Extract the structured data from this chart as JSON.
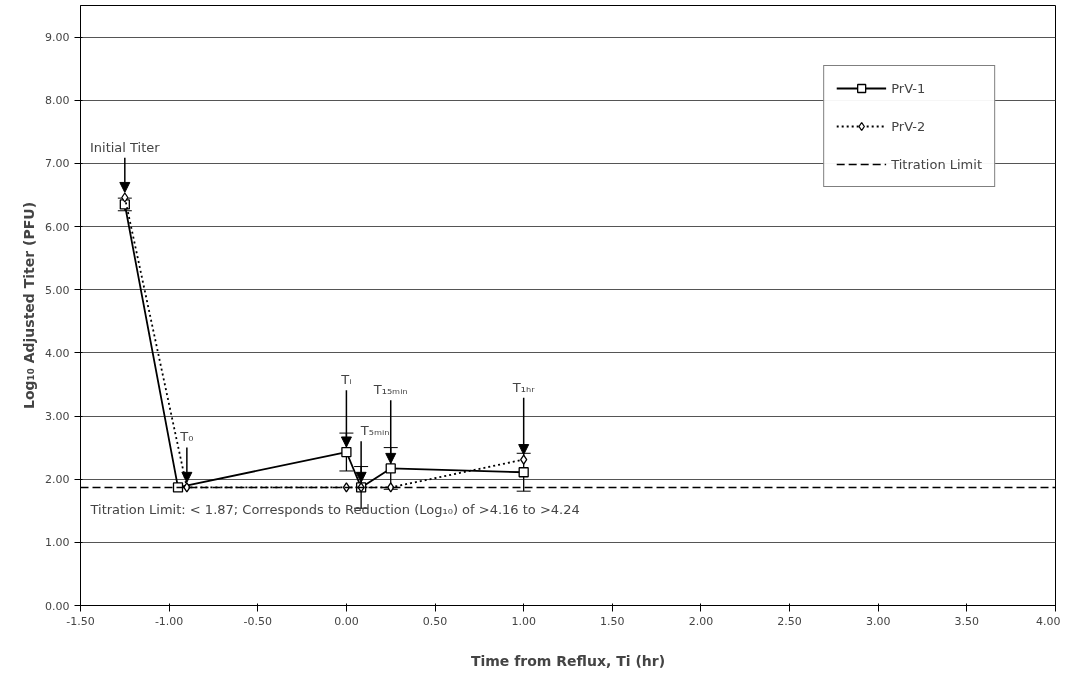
{
  "chart_data": {
    "type": "line",
    "xlabel": "Time from Reflux, Ti (hr)",
    "ylabel": "Log₁₀ Adjusted Titer (PFU)",
    "xlim": [
      -1.5,
      4.0
    ],
    "xticks": [
      {
        "value": -1.5,
        "label": "-1.50"
      },
      {
        "value": -1.0,
        "label": "-1.00"
      },
      {
        "value": -0.5,
        "label": "-0.50"
      },
      {
        "value": 0,
        "label": "0.00"
      },
      {
        "value": 0.5,
        "label": "0.50"
      },
      {
        "value": 1.0,
        "label": "1.00"
      },
      {
        "value": 1.5,
        "label": "1.50"
      },
      {
        "value": 2.0,
        "label": "2.00"
      },
      {
        "value": 2.5,
        "label": "2.50"
      },
      {
        "value": 3.0,
        "label": "3.00"
      },
      {
        "value": 3.5,
        "label": "3.50"
      },
      {
        "value": 4.0,
        "label": "4.00"
      }
    ],
    "ylim": [
      0,
      9.5
    ],
    "yticks": [
      {
        "value": 0,
        "label": "0.00"
      },
      {
        "value": 1,
        "label": "1.00"
      },
      {
        "value": 2,
        "label": "2.00"
      },
      {
        "value": 3,
        "label": "3.00"
      },
      {
        "value": 4,
        "label": "4.00"
      },
      {
        "value": 5,
        "label": "5.00"
      },
      {
        "value": 6,
        "label": "6.00"
      },
      {
        "value": 7,
        "label": "7.00"
      },
      {
        "value": 8,
        "label": "8.00"
      },
      {
        "value": 9,
        "label": "9.00"
      }
    ],
    "grid": "y",
    "legend": "top right",
    "series": [
      {
        "name": "PrV-1",
        "color": "#000000",
        "marker": "square",
        "line_style": "solid",
        "x": [
          -1.25,
          -0.95,
          0,
          0.083,
          0.25,
          1.0
        ],
        "values": [
          6.35,
          1.87,
          2.43,
          1.87,
          2.17,
          2.11
        ],
        "errors": [
          0.1,
          null,
          0.3,
          0.33,
          0.33,
          0.3
        ]
      },
      {
        "name": "PrV-2",
        "color": "#000000",
        "marker": "diamond",
        "line_style": "dotted",
        "x": [
          -1.25,
          -0.9,
          0,
          0.083,
          0.25,
          1.0
        ],
        "values": [
          6.46,
          1.87,
          1.87,
          1.87,
          1.87,
          2.31
        ]
      }
    ],
    "ref_lines": [
      {
        "axis": "y",
        "value": 1.87,
        "label": "Titration Limit",
        "color": "#000000",
        "line_style": "dashed"
      }
    ],
    "annotations": [
      {
        "text": "Initial Titer",
        "x": -1.25,
        "y": 6.46
      },
      {
        "text": "T₀",
        "x": -0.9,
        "y": 1.87
      },
      {
        "text": "Tᵢ",
        "x": 0,
        "y": 2.43
      },
      {
        "text": "T₅ₘᵢₙ",
        "x": 0.083,
        "y": 1.87
      },
      {
        "text": "T₁₅ₘᵢₙ",
        "x": 0.25,
        "y": 2.17
      },
      {
        "text": "T₁ₕᵣ",
        "x": 1.0,
        "y": 2.31
      },
      "Titration Limit: < 1.87; Corresponds to Reduction (Log₁₀) of >4.16 to >4.24"
    ]
  }
}
